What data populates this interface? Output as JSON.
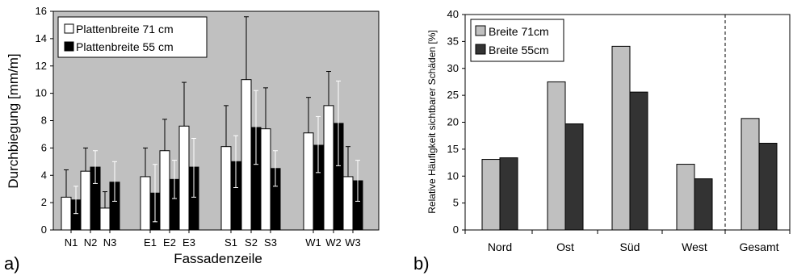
{
  "chart_data": [
    {
      "type": "bar",
      "panel_label": "a)",
      "xlabel": "Fassadenzeile",
      "ylabel": "Durchbiegung [mm/m]",
      "ylim": [
        0,
        16
      ],
      "yticks": [
        0,
        2,
        4,
        6,
        8,
        10,
        12,
        14,
        16
      ],
      "background": "#c0c0c0",
      "legend_position": "top-left",
      "categories": [
        "N1",
        "N2",
        "N3",
        "E1",
        "E2",
        "E3",
        "S1",
        "S2",
        "S3",
        "W1",
        "W2",
        "W3"
      ],
      "series": [
        {
          "name": "Plattenbreite 71 cm",
          "color": "#ffffff",
          "values": [
            2.4,
            4.3,
            1.6,
            3.9,
            5.8,
            7.6,
            6.1,
            11.0,
            7.4,
            7.1,
            9.1,
            3.9
          ],
          "error_upper": [
            4.4,
            6.0,
            2.8,
            6.0,
            8.1,
            10.8,
            9.1,
            15.6,
            10.4,
            9.7,
            11.6,
            6.1
          ]
        },
        {
          "name": "Plattenbreite 55 cm",
          "color": "#000000",
          "values": [
            2.2,
            4.6,
            3.5,
            2.7,
            3.7,
            4.6,
            5.0,
            7.5,
            4.5,
            6.2,
            7.8,
            3.6
          ],
          "error_upper": [
            3.2,
            5.8,
            5.0,
            4.8,
            5.1,
            6.7,
            6.9,
            10.2,
            5.8,
            8.3,
            10.9,
            5.1
          ],
          "error_lower": [
            1.2,
            3.4,
            2.1,
            0.6,
            2.3,
            2.4,
            3.1,
            4.8,
            3.2,
            4.2,
            4.7,
            2.1
          ]
        }
      ]
    },
    {
      "type": "bar",
      "panel_label": "b)",
      "xlabel": "",
      "ylabel": "Relative Häufigkeit sichtbarer Schäden [%]",
      "ylim": [
        0,
        40
      ],
      "yticks": [
        0,
        5,
        10,
        15,
        20,
        25,
        30,
        35,
        40
      ],
      "background": "#ffffff",
      "legend_position": "top-left",
      "categories": [
        "Nord",
        "Ost",
        "Süd",
        "West",
        "Gesamt"
      ],
      "series": [
        {
          "name": "Breite 71cm",
          "color": "#c0c0c0",
          "values": [
            13.1,
            27.5,
            34.1,
            12.2,
            20.7
          ]
        },
        {
          "name": "Breite 55cm",
          "color": "#333333",
          "values": [
            13.4,
            19.7,
            25.6,
            9.5,
            16.1
          ]
        }
      ]
    }
  ]
}
